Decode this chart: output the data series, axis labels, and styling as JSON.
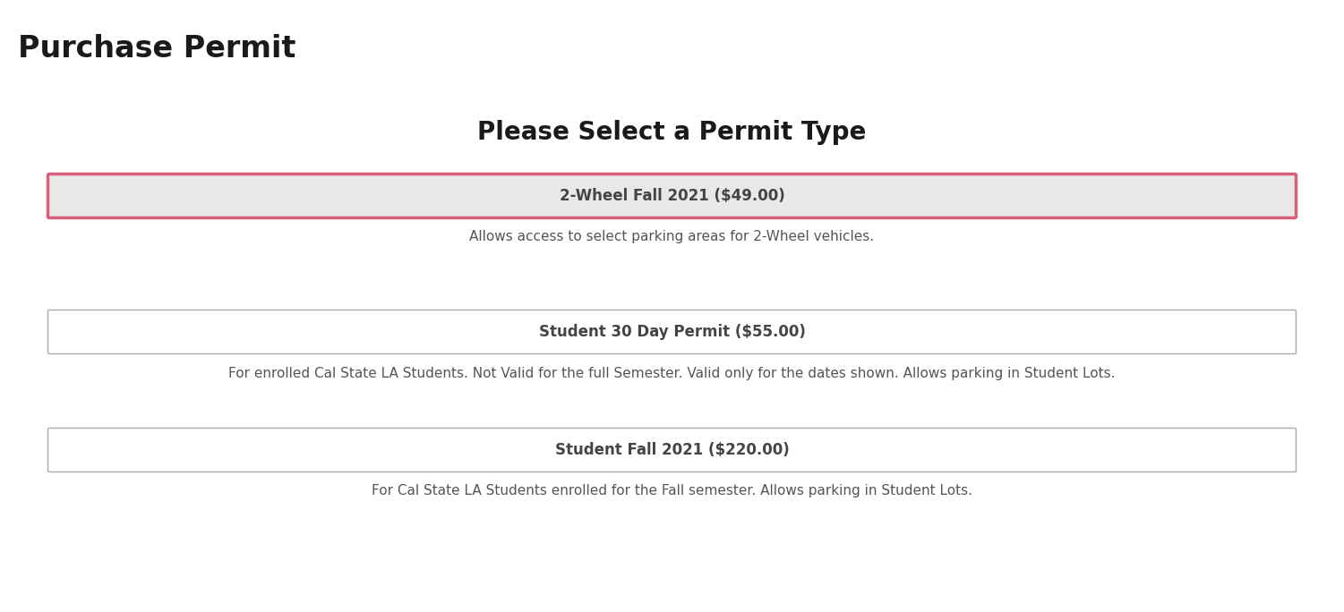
{
  "page_title": "Purchase Permit",
  "section_title": "Please Select a Permit Type",
  "permits": [
    {
      "button_label": "2-Wheel Fall 2021 ($49.00)",
      "description": "Allows access to select parking areas for 2-Wheel vehicles.",
      "selected": true,
      "button_bg": "#e8e8e8",
      "border_color": "#d9607a",
      "border_width": 2.5
    },
    {
      "button_label": "Student 30 Day Permit ($55.00)",
      "description": "For enrolled Cal State LA Students. Not Valid for the full Semester. Valid only for the dates shown. Allows parking in Student Lots.",
      "selected": false,
      "button_bg": "#ffffff",
      "border_color": "#aaaaaa",
      "border_width": 1.0
    },
    {
      "button_label": "Student Fall 2021 ($220.00)",
      "description": "For Cal State LA Students enrolled for the Fall semester. Allows parking in Student Lots.",
      "selected": false,
      "button_bg": "#ffffff",
      "border_color": "#aaaaaa",
      "border_width": 1.0
    }
  ],
  "bg_color": "#ffffff",
  "page_title_fontsize": 24,
  "section_title_fontsize": 20,
  "button_label_fontsize": 12,
  "description_fontsize": 11,
  "page_title_color": "#1a1a1a",
  "section_title_color": "#1a1a1a",
  "button_label_color": "#444444",
  "description_color": "#555555",
  "fig_width": 15.01,
  "fig_height": 6.84,
  "dpi": 100
}
